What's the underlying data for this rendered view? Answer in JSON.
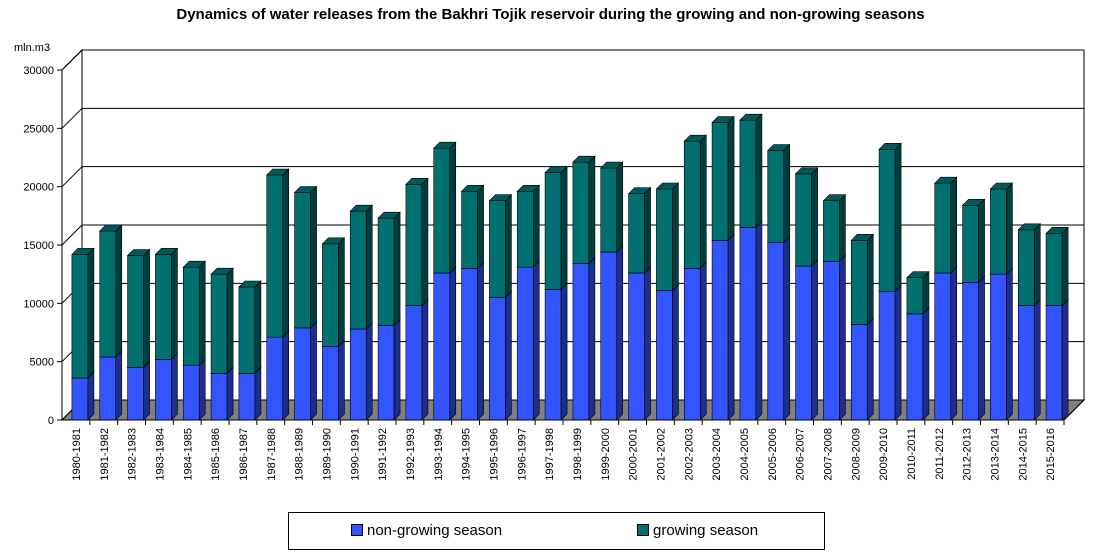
{
  "chart_data": {
    "type": "bar",
    "stacked": true,
    "title": "Dynamics of water releases from the Bakhri Tojik reservoir during the growing and non-growing seasons",
    "ylabel": "mln.m3",
    "ylim": [
      0,
      30000
    ],
    "yticks": [
      0,
      5000,
      10000,
      15000,
      20000,
      25000,
      30000
    ],
    "grid": true,
    "legend_position": "bottom",
    "categories": [
      "1980-1981",
      "1981-1982",
      "1982-1983",
      "1983-1984",
      "1984-1985",
      "1985-1986",
      "1986-1987",
      "1987-1988",
      "1988-1989",
      "1989-1990",
      "1990-1991",
      "1991-1992",
      "1992-1993",
      "1993-1994",
      "1994-1995",
      "1995-1996",
      "1996-1997",
      "1997-1998",
      "1998-1999",
      "1999-2000",
      "2000-2001",
      "2001-2002",
      "2002-2003",
      "2003-2004",
      "2004-2005",
      "2005-2006",
      "2006-2007",
      "2007-2008",
      "2008-2009",
      "2009-2010",
      "2010-2011",
      "2011-2012",
      "2012-2013",
      "2013-2014",
      "2014-2015",
      "2015-2016"
    ],
    "series": [
      {
        "name": "non-growing season",
        "color": "#3355ff",
        "values": [
          3600,
          5400,
          4500,
          5200,
          4700,
          4000,
          4000,
          7100,
          7900,
          6300,
          7800,
          8100,
          9800,
          12600,
          13000,
          10500,
          13100,
          11200,
          13400,
          14400,
          12600,
          11100,
          13000,
          15400,
          16500,
          15200,
          13200,
          13600,
          8200,
          11000,
          9100,
          12600,
          11800,
          12500,
          9800,
          9800
        ]
      },
      {
        "name": "growing season",
        "color": "#007070",
        "values": [
          10600,
          10800,
          9600,
          9000,
          8400,
          8500,
          7400,
          13900,
          11600,
          8800,
          10100,
          9200,
          10400,
          10700,
          6600,
          8300,
          6500,
          10000,
          8700,
          7200,
          6800,
          8700,
          10900,
          10100,
          9200,
          7900,
          7900,
          5200,
          7200,
          12200,
          3100,
          7700,
          6600,
          7300,
          6500,
          6200
        ]
      }
    ]
  }
}
